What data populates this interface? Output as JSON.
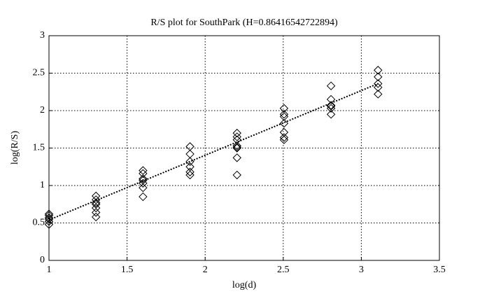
{
  "chart_data": {
    "type": "scatter",
    "title": "R/S plot for SouthPark (H=0.86416542722894)",
    "x_label": "log(d)",
    "y_label": "log(R/S)",
    "x": [
      1,
      1,
      1,
      1,
      1,
      1,
      1.301,
      1.301,
      1.301,
      1.301,
      1.301,
      1.301,
      1.301,
      1.602,
      1.602,
      1.602,
      1.602,
      1.602,
      1.602,
      1.602,
      1.903,
      1.903,
      1.903,
      1.903,
      1.903,
      1.903,
      2.204,
      2.204,
      2.204,
      2.204,
      2.204,
      2.204,
      2.204,
      2.204,
      2.505,
      2.505,
      2.505,
      2.505,
      2.505,
      2.505,
      2.505,
      2.806,
      2.806,
      2.806,
      2.806,
      2.806,
      2.806,
      3.107,
      3.107,
      3.107,
      3.107,
      3.107
    ],
    "values": [
      0.62,
      0.6,
      0.57,
      0.55,
      0.52,
      0.48,
      0.86,
      0.81,
      0.77,
      0.75,
      0.7,
      0.64,
      0.58,
      1.2,
      1.16,
      1.09,
      1.07,
      1.03,
      0.97,
      0.85,
      1.52,
      1.42,
      1.32,
      1.25,
      1.18,
      1.14,
      1.7,
      1.65,
      1.61,
      1.53,
      1.51,
      1.5,
      1.37,
      1.14,
      2.03,
      1.95,
      1.92,
      1.83,
      1.71,
      1.64,
      1.61,
      2.33,
      2.15,
      2.07,
      2.06,
      2.03,
      1.95,
      2.54,
      2.45,
      2.36,
      2.31,
      2.22
    ],
    "color": "#000000",
    "fit": {
      "x": [
        1,
        3.107
      ],
      "values": [
        0.54,
        2.36
      ],
      "color": "#000000"
    },
    "xlim": [
      1,
      3.5
    ],
    "xticks": [
      1,
      1.5,
      2,
      2.5,
      3,
      3.5
    ],
    "ylim": [
      0,
      3
    ],
    "yticks": [
      0,
      0.5,
      1,
      1.5,
      2,
      2.5,
      3
    ],
    "grid": true
  }
}
